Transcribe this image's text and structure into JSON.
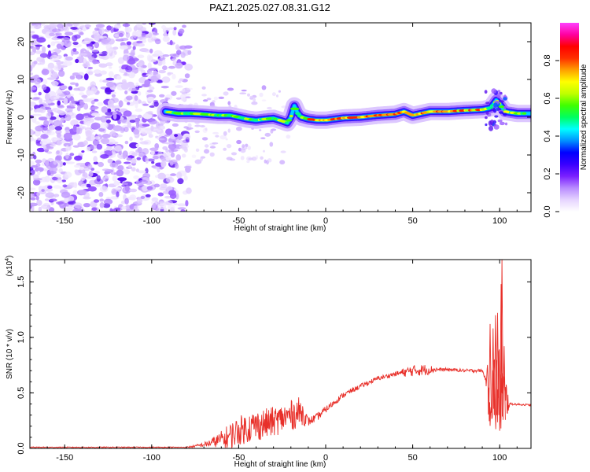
{
  "figure": {
    "title": "PAZ1.2025.027.08.31.G12"
  },
  "chart_data": [
    {
      "type": "heatmap",
      "name": "spectrogram",
      "xlabel": "Height of straight line (km)",
      "ylabel": "Frequency (Hz)",
      "xlim": [
        -170,
        118
      ],
      "ylim": [
        -25,
        25
      ],
      "xticks": [
        -150,
        -100,
        -50,
        0,
        50,
        100
      ],
      "yticks": [
        -20,
        -10,
        0,
        10,
        20
      ],
      "noise_region_x": [
        -170,
        -78
      ],
      "ridge": [
        [
          -92,
          1.5
        ],
        [
          -85,
          1.0
        ],
        [
          -78,
          1.0
        ],
        [
          -70,
          0.8
        ],
        [
          -62,
          0.5
        ],
        [
          -55,
          0.5
        ],
        [
          -50,
          0.0
        ],
        [
          -45,
          -0.5
        ],
        [
          -40,
          -0.8
        ],
        [
          -35,
          -0.5
        ],
        [
          -30,
          -0.3
        ],
        [
          -25,
          -1.0
        ],
        [
          -22,
          -1.5
        ],
        [
          -20,
          0.0
        ],
        [
          -18,
          3.0
        ],
        [
          -16,
          1.0
        ],
        [
          -14,
          0.0
        ],
        [
          -10,
          -0.5
        ],
        [
          -5,
          -0.8
        ],
        [
          0,
          -0.8
        ],
        [
          10,
          -0.2
        ],
        [
          20,
          0.0
        ],
        [
          30,
          0.5
        ],
        [
          40,
          0.8
        ],
        [
          45,
          1.5
        ],
        [
          50,
          0.5
        ],
        [
          60,
          1.5
        ],
        [
          70,
          1.5
        ],
        [
          80,
          1.8
        ],
        [
          90,
          2.0
        ],
        [
          95,
          2.5
        ],
        [
          98,
          4.5
        ],
        [
          100,
          3.5
        ],
        [
          103,
          1.5
        ],
        [
          110,
          1.0
        ],
        [
          118,
          1.0
        ]
      ],
      "colorbar": {
        "label": "Normalized spectral amplitude",
        "ticks": [
          "0.0",
          "0.2",
          "0.4",
          "0.6",
          "0.8"
        ],
        "range": [
          0,
          1
        ],
        "colors": [
          "#ffffff",
          "#e6d4ff",
          "#b98cff",
          "#7a20ff",
          "#3a00ff",
          "#0000ff",
          "#0090ff",
          "#00ffff",
          "#00ff60",
          "#40ff00",
          "#c0ff00",
          "#ffff00",
          "#ffa000",
          "#ff3000",
          "#ff0000",
          "#ff00a0",
          "#ff40ff"
        ]
      }
    },
    {
      "type": "line",
      "name": "snr",
      "xlabel": "Height of straight line (km)",
      "ylabel": "SNR (10 * v/v)",
      "yscale_label": "(x10",
      "yscale_exp": "4",
      "xlim": [
        -170,
        118
      ],
      "ylim": [
        0,
        1.7
      ],
      "xticks": [
        -150,
        -100,
        -50,
        0,
        50,
        100
      ],
      "yticks": [
        0.0,
        0.5,
        1.0,
        1.5
      ],
      "ytick_labels": [
        "0.0",
        "0.5",
        "1.0",
        "1.5"
      ],
      "color": "#e8302a",
      "envelope": [
        [
          -170,
          0.01
        ],
        [
          -80,
          0.01
        ],
        [
          -75,
          0.02
        ],
        [
          -68,
          0.04
        ],
        [
          -62,
          0.07
        ],
        [
          -55,
          0.11
        ],
        [
          -50,
          0.16
        ],
        [
          -42,
          0.2
        ],
        [
          -35,
          0.22
        ],
        [
          -28,
          0.25
        ],
        [
          -20,
          0.3
        ],
        [
          -14,
          0.33
        ],
        [
          -10,
          0.24
        ],
        [
          -5,
          0.28
        ],
        [
          0,
          0.35
        ],
        [
          10,
          0.48
        ],
        [
          20,
          0.56
        ],
        [
          30,
          0.63
        ],
        [
          40,
          0.67
        ],
        [
          50,
          0.7
        ],
        [
          60,
          0.71
        ],
        [
          70,
          0.71
        ],
        [
          80,
          0.7
        ],
        [
          90,
          0.7
        ],
        [
          95,
          0.5
        ],
        [
          100,
          0.5
        ],
        [
          103,
          0.45
        ],
        [
          106,
          0.4
        ],
        [
          118,
          0.39
        ]
      ],
      "oscillation": [
        [
          -170,
          0.004
        ],
        [
          -80,
          0.004
        ],
        [
          -70,
          0.02
        ],
        [
          -62,
          0.06
        ],
        [
          -55,
          0.12
        ],
        [
          -45,
          0.14
        ],
        [
          -35,
          0.14
        ],
        [
          -25,
          0.13
        ],
        [
          -15,
          0.14
        ],
        [
          -10,
          0.04
        ],
        [
          0,
          0.03
        ],
        [
          20,
          0.02
        ],
        [
          40,
          0.02
        ],
        [
          48,
          0.05
        ],
        [
          58,
          0.05
        ],
        [
          65,
          0.015
        ],
        [
          92,
          0.015
        ],
        [
          94,
          0.35
        ],
        [
          100,
          0.45
        ],
        [
          103,
          0.25
        ],
        [
          106,
          0.01
        ],
        [
          118,
          0.008
        ]
      ],
      "spikes": [
        {
          "x": 101.3,
          "y": 1.7
        },
        {
          "x": 100.8,
          "y": 1.48
        },
        {
          "x": 97.6,
          "y": 1.2
        },
        {
          "x": 98.8,
          "y": 1.22
        },
        {
          "x": 94.5,
          "y": 1.12
        },
        {
          "x": 96.2,
          "y": 1.08
        },
        {
          "x": 102.6,
          "y": 0.92
        }
      ]
    }
  ]
}
